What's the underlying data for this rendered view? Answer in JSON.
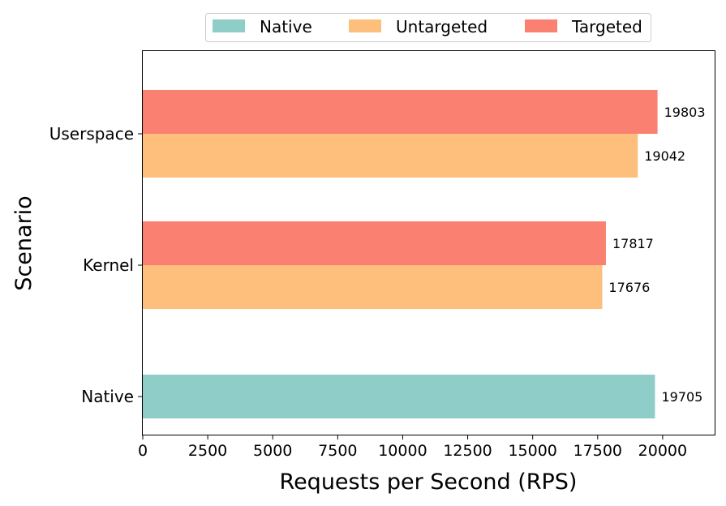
{
  "chart_data": {
    "type": "bar",
    "orientation": "horizontal",
    "categories": [
      "Native",
      "Kernel",
      "Userspace"
    ],
    "series": [
      {
        "name": "Native",
        "color": "#8ecdc8",
        "values": [
          19705,
          null,
          null
        ]
      },
      {
        "name": "Untargeted",
        "color": "#fdbf7b",
        "values": [
          null,
          17676,
          19042
        ]
      },
      {
        "name": "Targeted",
        "color": "#fa8072",
        "values": [
          null,
          17817,
          19803
        ]
      }
    ],
    "xlabel": "Requests per Second (RPS)",
    "ylabel": "Scenario",
    "xlim": [
      0,
      22000
    ],
    "xticks": [
      0,
      2500,
      5000,
      7500,
      10000,
      12500,
      15000,
      17500,
      20000
    ],
    "data_labels": [
      "19705",
      "17676",
      "17817",
      "19042",
      "19803"
    ],
    "legend_position": "top-center",
    "grid": false
  }
}
